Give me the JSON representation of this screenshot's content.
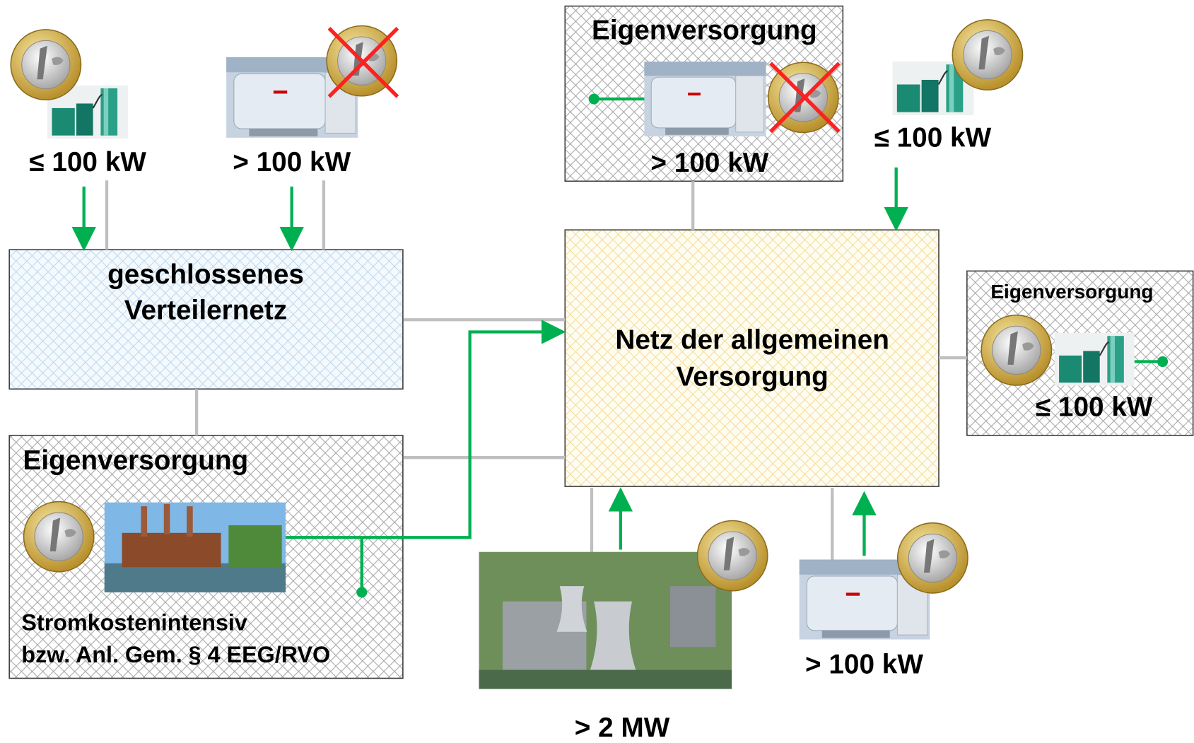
{
  "plants": [
    {
      "label": "≤ 100 kW"
    },
    {
      "label": "> 100 kW"
    },
    {
      "label": "≤ 100 kW"
    },
    {
      "label": "> 100 kW"
    },
    {
      "label": "> 2 MW"
    }
  ],
  "boxes": {
    "self_supply_top": {
      "title": "Eigenversorgung",
      "label": "> 100 kW"
    },
    "closed_grid": {
      "lines": [
        "geschlossenes",
        "Verteilernetz"
      ]
    },
    "public_grid": {
      "lines": [
        "Netz der allgemeinen",
        "Versorgung"
      ]
    },
    "self_supply_right": {
      "title": "Eigenversorgung",
      "label": "≤ 100 kW"
    },
    "self_supply_left": {
      "title": "Eigenversorgung",
      "note": [
        "Stromkostenintensiv",
        "bzw. Anl. Gem. § 4 EEG/RVO"
      ]
    }
  }
}
